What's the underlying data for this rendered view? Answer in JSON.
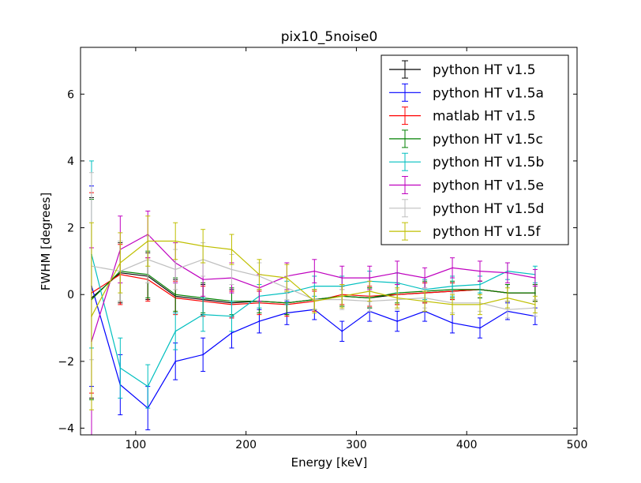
{
  "chart_data": {
    "type": "line",
    "title": "pix10_5noise0",
    "xlabel": "Energy [keV]",
    "ylabel": "FWHM [degrees]",
    "xlim": [
      50,
      500
    ],
    "ylim": [
      -4.2,
      7.4
    ],
    "xticks": [
      100,
      200,
      300,
      400,
      500
    ],
    "yticks": [
      -4,
      -2,
      0,
      2,
      4,
      6
    ],
    "xtick_labels": [
      "100",
      "200",
      "300",
      "400",
      "500"
    ],
    "ytick_labels": [
      "−4",
      "−2",
      "0",
      "2",
      "4",
      "6"
    ],
    "grid": false,
    "legend_position": "top-right",
    "x": [
      60,
      86,
      111,
      136,
      161,
      187,
      212,
      237,
      262,
      287,
      312,
      337,
      362,
      387,
      412,
      437,
      462
    ],
    "series": [
      {
        "name": "python HT v1.5",
        "color": "#000000",
        "values": [
          -0.1,
          0.65,
          0.55,
          -0.05,
          -0.15,
          -0.25,
          -0.2,
          -0.25,
          -0.15,
          -0.05,
          -0.1,
          0.0,
          0.05,
          0.1,
          0.15,
          0.05,
          0.05
        ],
        "errors": [
          3.0,
          0.9,
          0.7,
          0.5,
          0.45,
          0.4,
          0.35,
          0.35,
          0.3,
          0.3,
          0.3,
          0.3,
          0.3,
          0.25,
          0.25,
          0.25,
          0.25
        ]
      },
      {
        "name": "python HT v1.5a",
        "color": "#0000ff",
        "values": [
          0.25,
          -2.7,
          -3.4,
          -2.0,
          -1.8,
          -1.15,
          -0.8,
          -0.55,
          -0.45,
          -1.1,
          -0.5,
          -0.8,
          -0.5,
          -0.85,
          -1.0,
          -0.5,
          -0.65
        ],
        "errors": [
          3.0,
          0.9,
          0.65,
          0.55,
          0.5,
          0.45,
          0.35,
          0.35,
          0.3,
          0.3,
          0.3,
          0.3,
          0.3,
          0.3,
          0.3,
          0.25,
          0.25
        ]
      },
      {
        "name": "matlab HT v1.5",
        "color": "#ff0000",
        "values": [
          0.05,
          0.6,
          0.45,
          -0.1,
          -0.2,
          -0.3,
          -0.25,
          -0.3,
          -0.2,
          0.0,
          -0.05,
          0.0,
          0.05,
          0.1,
          0.15,
          0.05,
          0.05
        ],
        "errors": [
          3.0,
          0.9,
          0.65,
          0.5,
          0.45,
          0.4,
          0.35,
          0.35,
          0.3,
          0.3,
          0.3,
          0.3,
          0.3,
          0.25,
          0.25,
          0.25,
          0.25
        ]
      },
      {
        "name": "python HT v1.5c",
        "color": "#008000",
        "values": [
          -0.15,
          0.7,
          0.6,
          0.0,
          -0.1,
          -0.2,
          -0.2,
          -0.25,
          -0.15,
          -0.05,
          -0.1,
          0.05,
          0.1,
          0.15,
          0.15,
          0.05,
          0.05
        ],
        "errors": [
          3.0,
          0.9,
          0.7,
          0.5,
          0.45,
          0.4,
          0.35,
          0.35,
          0.3,
          0.3,
          0.3,
          0.3,
          0.3,
          0.25,
          0.25,
          0.25,
          0.25
        ]
      },
      {
        "name": "python HT v1.5b",
        "color": "#00bfbf",
        "values": [
          1.2,
          -2.2,
          -2.75,
          -1.1,
          -0.6,
          -0.65,
          -0.05,
          0.05,
          0.25,
          0.25,
          0.4,
          0.35,
          0.15,
          0.25,
          0.3,
          0.7,
          0.6
        ],
        "errors": [
          2.8,
          0.9,
          0.65,
          0.55,
          0.5,
          0.45,
          0.35,
          0.35,
          0.3,
          0.3,
          0.3,
          0.3,
          0.3,
          0.3,
          0.25,
          0.25,
          0.25
        ]
      },
      {
        "name": "python HT v1.5e",
        "color": "#bf00bf",
        "values": [
          -1.4,
          1.35,
          1.8,
          0.95,
          0.45,
          0.5,
          0.2,
          0.55,
          0.7,
          0.5,
          0.5,
          0.65,
          0.5,
          0.8,
          0.7,
          0.65,
          0.5
        ],
        "errors": [
          2.8,
          1.0,
          0.7,
          0.6,
          0.5,
          0.45,
          0.4,
          0.4,
          0.35,
          0.35,
          0.35,
          0.35,
          0.3,
          0.3,
          0.3,
          0.3,
          0.25
        ]
      },
      {
        "name": "python HT v1.5d",
        "color": "#bfbfbf",
        "values": [
          0.85,
          0.7,
          1.05,
          0.75,
          1.05,
          0.75,
          0.55,
          0.2,
          -0.15,
          -0.15,
          -0.2,
          -0.15,
          -0.1,
          -0.25,
          -0.25,
          -0.45,
          -0.4
        ],
        "errors": [
          2.8,
          0.9,
          0.7,
          0.6,
          0.5,
          0.45,
          0.4,
          0.35,
          0.3,
          0.3,
          0.3,
          0.3,
          0.3,
          0.3,
          0.25,
          0.25,
          0.25
        ]
      },
      {
        "name": "python HT v1.5f",
        "color": "#bfbf00",
        "values": [
          -0.65,
          0.95,
          1.6,
          1.6,
          1.45,
          1.35,
          0.6,
          0.5,
          -0.2,
          -0.05,
          0.1,
          -0.1,
          -0.2,
          -0.3,
          -0.3,
          -0.1,
          -0.3
        ],
        "errors": [
          2.8,
          0.9,
          0.75,
          0.55,
          0.5,
          0.45,
          0.45,
          0.4,
          0.35,
          0.35,
          0.3,
          0.3,
          0.3,
          0.3,
          0.3,
          0.3,
          0.25
        ]
      }
    ]
  }
}
